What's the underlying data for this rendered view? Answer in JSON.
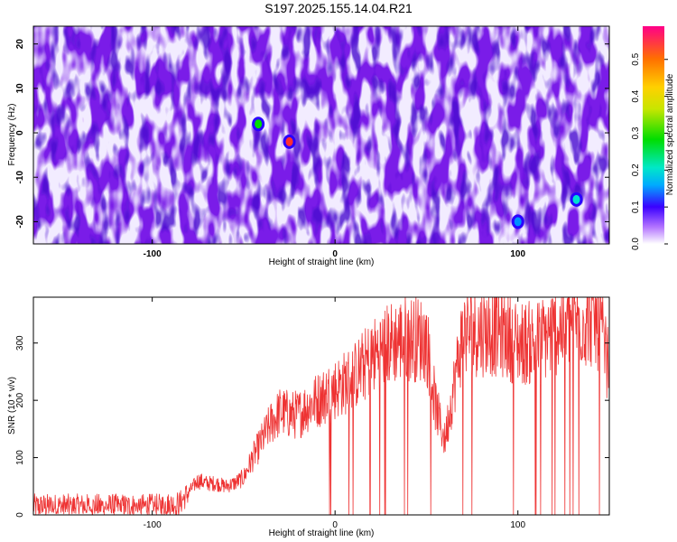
{
  "title": "S197.2025.155.14.04.R21",
  "chart_data": [
    {
      "type": "heatmap",
      "xlabel": "Height of straight line (km)",
      "ylabel": "Frequency (Hz)",
      "xlim": [
        -165,
        150
      ],
      "ylim": [
        -25,
        24
      ],
      "xticks": [
        -100,
        0,
        100
      ],
      "yticks": [
        -20,
        -10,
        0,
        10,
        20
      ],
      "colorbar": {
        "label": "Normalized spectral amplitude",
        "range": [
          0,
          0.59
        ],
        "ticks": [
          0.0,
          0.1,
          0.2,
          0.3,
          0.4,
          0.5
        ]
      },
      "hotspots": [
        {
          "x": -42,
          "y": 2,
          "value": 0.3
        },
        {
          "x": -25,
          "y": -2,
          "value": 0.55
        },
        {
          "x": 132,
          "y": -15,
          "value": 0.25
        },
        {
          "x": 100,
          "y": -20,
          "value": 0.12
        }
      ]
    },
    {
      "type": "line",
      "xlabel": "Height of straight line (km)",
      "ylabel": "SNR (10 * v/v)",
      "xlim": [
        -165,
        150
      ],
      "ylim": [
        0,
        380
      ],
      "xticks": [
        -100,
        0,
        100
      ],
      "yticks": [
        0,
        100,
        200,
        300
      ],
      "series": [
        {
          "color": "#ee3333",
          "x": [
            -165,
            -150,
            -130,
            -110,
            -95,
            -85,
            -80,
            -75,
            -70,
            -65,
            -60,
            -55,
            -50,
            -45,
            -40,
            -35,
            -30,
            -25,
            -20,
            -15,
            -10,
            -5,
            0,
            10,
            20,
            30,
            40,
            50,
            55,
            60,
            70,
            80,
            90,
            100,
            110,
            120,
            130,
            140,
            145,
            150
          ],
          "y": [
            15,
            15,
            15,
            15,
            15,
            20,
            40,
            60,
            55,
            55,
            50,
            55,
            65,
            100,
            130,
            160,
            180,
            175,
            175,
            190,
            200,
            210,
            220,
            240,
            275,
            300,
            310,
            305,
            190,
            130,
            320,
            320,
            320,
            300,
            300,
            320,
            340,
            340,
            330,
            250
          ]
        }
      ]
    }
  ]
}
